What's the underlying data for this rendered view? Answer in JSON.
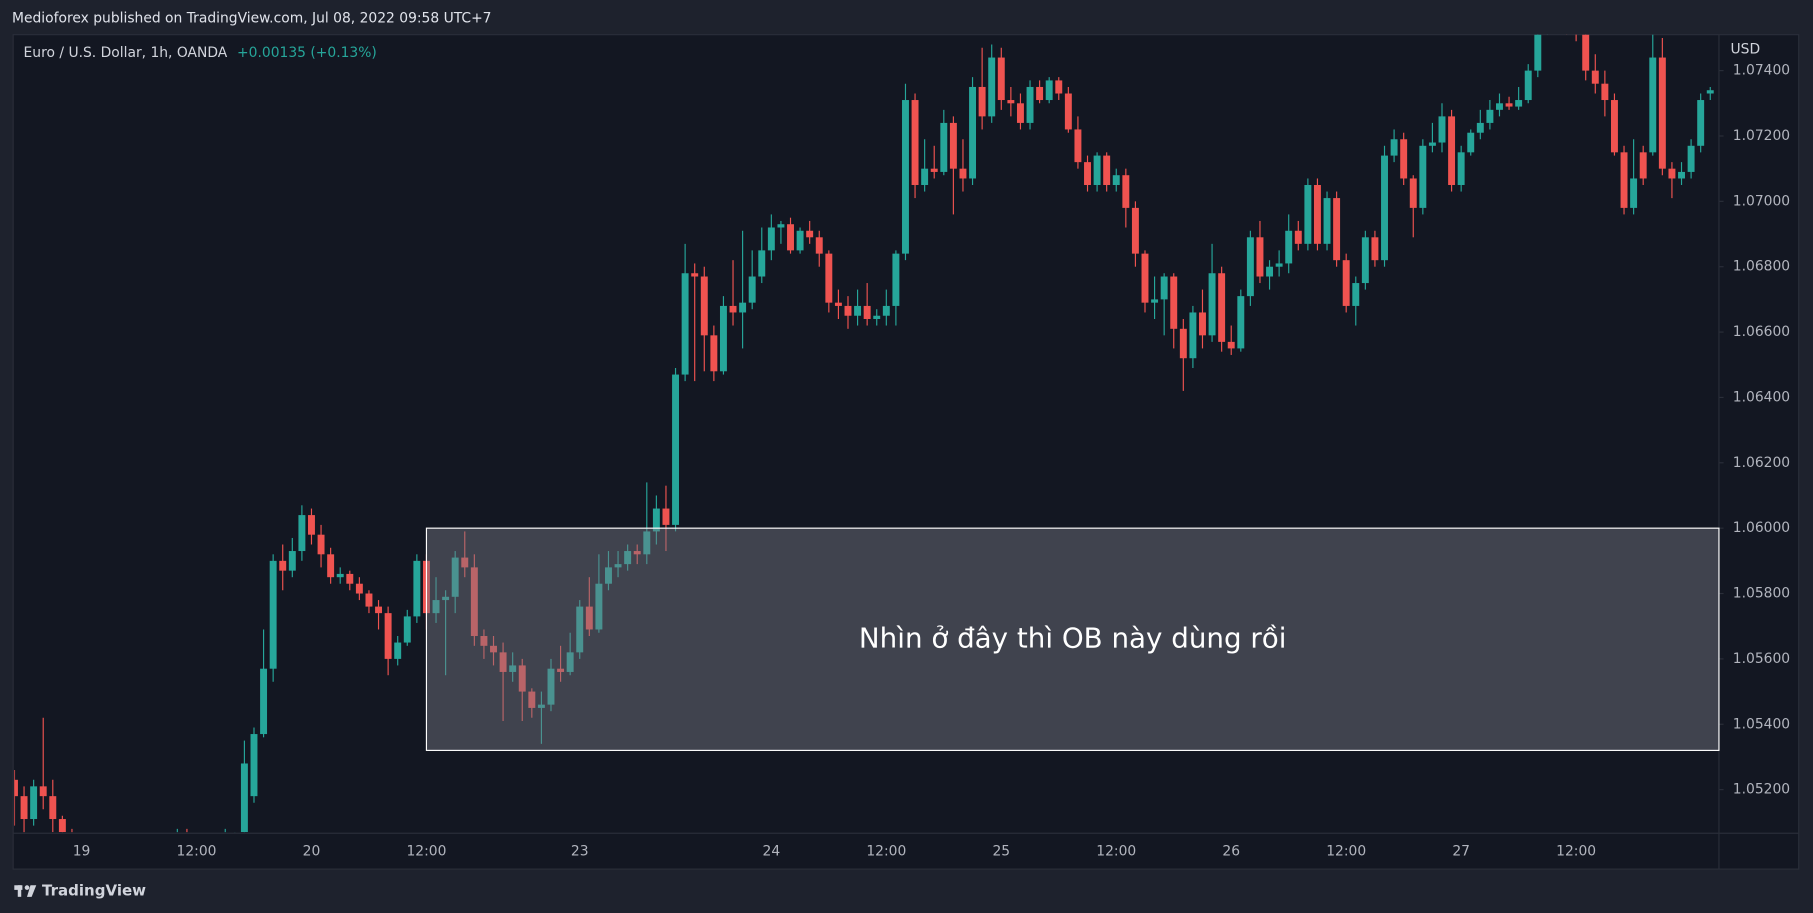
{
  "header": "Medioforex published on TradingView.com, Jul 08, 2022 09:58 UTC+7",
  "footer": "TradingView",
  "chart_data": {
    "type": "candlestick",
    "title": "Euro / U.S. Dollar, 1h, OANDA",
    "change": "+0.00135 (+0.13%)",
    "y_axis_label": "USD",
    "up_color": "#26a69a",
    "down_color": "#ef5350",
    "grid": false,
    "ylim": [
      1.0507,
      1.0751
    ],
    "yticks": [
      {
        "value": 1.052,
        "label": "1.05200"
      },
      {
        "value": 1.054,
        "label": "1.05400"
      },
      {
        "value": 1.056,
        "label": "1.05600"
      },
      {
        "value": 1.058,
        "label": "1.05800"
      },
      {
        "value": 1.06,
        "label": "1.06000"
      },
      {
        "value": 1.062,
        "label": "1.06200"
      },
      {
        "value": 1.064,
        "label": "1.06400"
      },
      {
        "value": 1.066,
        "label": "1.06600"
      },
      {
        "value": 1.068,
        "label": "1.06800"
      },
      {
        "value": 1.07,
        "label": "1.07000"
      },
      {
        "value": 1.072,
        "label": "1.07200"
      },
      {
        "value": 1.074,
        "label": "1.07400"
      }
    ],
    "categories": [
      null,
      null,
      null,
      null,
      null,
      null,
      null,
      "19",
      null,
      null,
      null,
      null,
      null,
      null,
      null,
      null,
      null,
      null,
      null,
      "12:00",
      null,
      null,
      null,
      null,
      null,
      null,
      null,
      null,
      null,
      null,
      null,
      "20",
      null,
      null,
      null,
      null,
      null,
      null,
      null,
      null,
      null,
      null,
      null,
      "12:00",
      null,
      null,
      null,
      null,
      null,
      null,
      null,
      null,
      null,
      null,
      null,
      null,
      null,
      null,
      null,
      "23",
      null,
      null,
      null,
      null,
      null,
      null,
      null,
      null,
      null,
      null,
      null,
      null,
      null,
      null,
      null,
      null,
      null,
      null,
      null,
      "24",
      null,
      null,
      null,
      null,
      null,
      null,
      null,
      null,
      null,
      null,
      null,
      "12:00",
      null,
      null,
      null,
      null,
      null,
      null,
      null,
      null,
      null,
      null,
      null,
      "25",
      null,
      null,
      null,
      null,
      null,
      null,
      null,
      null,
      null,
      null,
      null,
      "12:00",
      null,
      null,
      null,
      null,
      null,
      null,
      null,
      null,
      null,
      null,
      null,
      "26",
      null,
      null,
      null,
      null,
      null,
      null,
      null,
      null,
      null,
      null,
      null,
      "12:00",
      null,
      null,
      null,
      null,
      null,
      null,
      null,
      null,
      null,
      null,
      null,
      "27",
      null,
      null,
      null,
      null,
      null,
      null,
      null,
      null,
      null,
      null,
      null,
      "12:00",
      null,
      null,
      null,
      null,
      null,
      null,
      null,
      null,
      null,
      null,
      null,
      null,
      null,
      null
    ],
    "open": [
      1.0523,
      1.0518,
      1.0511,
      1.0521,
      1.0518,
      1.0511,
      1.0507,
      1.0502,
      1.0499,
      1.0497,
      1.05,
      1.0498,
      1.0495,
      1.0497,
      1.0501,
      1.0499,
      1.0496,
      1.0499,
      1.0503,
      1.0501,
      1.0498,
      1.05,
      1.0502,
      1.0504,
      1.0507,
      1.0518,
      1.0537,
      1.0557,
      1.059,
      1.0587,
      1.0593,
      1.0604,
      1.0598,
      1.0592,
      1.0585,
      1.0586,
      1.0583,
      1.058,
      1.0576,
      1.0574,
      1.056,
      1.0565,
      1.0573,
      1.059,
      1.0574,
      1.0578,
      1.0579,
      1.0591,
      1.0588,
      1.0567,
      1.0564,
      1.0562,
      1.0556,
      1.0558,
      1.055,
      1.0545,
      1.0546,
      1.0557,
      1.0556,
      1.0562,
      1.0576,
      1.0569,
      1.0583,
      1.0588,
      1.0589,
      1.0593,
      1.0592,
      1.0599,
      1.0606,
      1.0601,
      1.0647,
      1.0678,
      1.0677,
      1.0659,
      1.0648,
      1.0668,
      1.0666,
      1.0669,
      1.0677,
      1.0685,
      1.0692,
      1.0693,
      1.0685,
      1.0691,
      1.0689,
      1.0684,
      1.0669,
      1.0668,
      1.0665,
      1.0668,
      1.0664,
      1.0665,
      1.0668,
      1.0684,
      1.0731,
      1.0705,
      1.071,
      1.0709,
      1.0724,
      1.071,
      1.0707,
      1.0735,
      1.0726,
      1.0744,
      1.0731,
      1.073,
      1.0724,
      1.0735,
      1.0731,
      1.0737,
      1.0733,
      1.0722,
      1.0712,
      1.0705,
      1.0714,
      1.0705,
      1.0708,
      1.0698,
      1.0684,
      1.0669,
      1.067,
      1.0677,
      1.0661,
      1.0652,
      1.0666,
      1.0659,
      1.0678,
      1.0657,
      1.0655,
      1.0671,
      1.0689,
      1.0677,
      1.068,
      1.0681,
      1.0691,
      1.0687,
      1.0705,
      1.0687,
      1.0701,
      1.0682,
      1.0668,
      1.0675,
      1.0689,
      1.0682,
      1.0714,
      1.0719,
      1.0707,
      1.0698,
      1.0717,
      1.0718,
      1.0726,
      1.0705,
      1.0715,
      1.0721,
      1.0724,
      1.0728,
      1.073,
      1.0729,
      1.0731,
      1.074,
      1.0752,
      1.0756,
      1.0758,
      1.0754,
      1.0751,
      1.074,
      1.0736,
      1.0731,
      1.0715,
      1.0698,
      1.0715,
      1.0715,
      1.0744,
      1.071,
      1.0707,
      1.0709,
      1.0717,
      1.0733
    ],
    "high": [
      1.0526,
      1.0521,
      1.0523,
      1.0542,
      1.0523,
      1.0512,
      1.0508,
      1.0505,
      1.0503,
      1.0502,
      1.0504,
      1.0501,
      1.05,
      1.0503,
      1.0504,
      1.0502,
      1.0501,
      1.0508,
      1.0508,
      1.0504,
      1.0502,
      1.0505,
      1.0508,
      1.0507,
      1.0535,
      1.0539,
      1.0569,
      1.0592,
      1.0595,
      1.0597,
      1.0607,
      1.0606,
      1.0601,
      1.0594,
      1.0588,
      1.0587,
      1.0585,
      1.0581,
      1.0578,
      1.0576,
      1.0567,
      1.0575,
      1.0592,
      1.0592,
      1.0585,
      1.0581,
      1.0593,
      1.0599,
      1.0592,
      1.0569,
      1.0567,
      1.0565,
      1.0562,
      1.056,
      1.0551,
      1.055,
      1.056,
      1.0564,
      1.0568,
      1.0578,
      1.0585,
      1.0592,
      1.0593,
      1.0593,
      1.0595,
      1.0595,
      1.0614,
      1.061,
      1.0613,
      1.0649,
      1.0687,
      1.0681,
      1.068,
      1.0662,
      1.0671,
      1.0682,
      1.0691,
      1.0685,
      1.0692,
      1.0696,
      1.0694,
      1.0695,
      1.0692,
      1.0694,
      1.0691,
      1.0685,
      1.0673,
      1.0671,
      1.0673,
      1.0675,
      1.0667,
      1.0673,
      1.0685,
      1.0736,
      1.0733,
      1.0719,
      1.0717,
      1.0728,
      1.0726,
      1.0719,
      1.0738,
      1.0747,
      1.0748,
      1.0747,
      1.0735,
      1.0733,
      1.0737,
      1.0737,
      1.0738,
      1.0738,
      1.0735,
      1.0726,
      1.0714,
      1.0715,
      1.0715,
      1.071,
      1.071,
      1.07,
      1.0685,
      1.0677,
      1.0678,
      1.0678,
      1.0664,
      1.0668,
      1.0673,
      1.0687,
      1.068,
      1.0662,
      1.0673,
      1.0691,
      1.0694,
      1.0682,
      1.0685,
      1.0696,
      1.0694,
      1.0707,
      1.0707,
      1.0703,
      1.0703,
      1.0684,
      1.0677,
      1.0691,
      1.0691,
      1.0717,
      1.0722,
      1.0721,
      1.0708,
      1.0719,
      1.0724,
      1.073,
      1.0728,
      1.0717,
      1.0722,
      1.0728,
      1.0731,
      1.0733,
      1.0732,
      1.0735,
      1.0742,
      1.0754,
      1.0758,
      1.076,
      1.076,
      1.0758,
      1.0752,
      1.0745,
      1.074,
      1.0733,
      1.0717,
      1.0719,
      1.0717,
      1.0751,
      1.075,
      1.0712,
      1.0712,
      1.0719,
      1.0733,
      1.0735
    ],
    "low": [
      1.0509,
      1.0505,
      1.0509,
      1.0514,
      1.0507,
      1.0503,
      1.0498,
      1.0496,
      1.0494,
      1.0493,
      1.0496,
      1.0492,
      1.049,
      1.0494,
      1.0497,
      1.0494,
      1.0492,
      1.0496,
      1.0499,
      1.0496,
      1.0494,
      1.0497,
      1.0499,
      1.05,
      1.0505,
      1.0516,
      1.0536,
      1.0553,
      1.0581,
      1.0585,
      1.059,
      1.0595,
      1.0588,
      1.0583,
      1.0583,
      1.0581,
      1.0578,
      1.0574,
      1.0569,
      1.0555,
      1.0558,
      1.0564,
      1.0571,
      1.0569,
      1.0571,
      1.0555,
      1.0574,
      1.0585,
      1.0564,
      1.056,
      1.0558,
      1.0541,
      1.0553,
      1.0541,
      1.0542,
      1.0534,
      1.0544,
      1.0553,
      1.0555,
      1.056,
      1.0567,
      1.0568,
      1.0581,
      1.0585,
      1.0587,
      1.0589,
      1.0589,
      1.0595,
      1.0593,
      1.0599,
      1.0645,
      1.0645,
      1.0648,
      1.0645,
      1.0647,
      1.0662,
      1.0655,
      1.0667,
      1.0675,
      1.0682,
      1.0687,
      1.0684,
      1.0684,
      1.0687,
      1.068,
      1.0666,
      1.0664,
      1.0661,
      1.0662,
      1.0662,
      1.0662,
      1.0662,
      1.0662,
      1.0682,
      1.0701,
      1.0703,
      1.0707,
      1.0708,
      1.0696,
      1.0703,
      1.0705,
      1.0722,
      1.0724,
      1.0728,
      1.0726,
      1.0722,
      1.0722,
      1.073,
      1.073,
      1.0731,
      1.0721,
      1.071,
      1.0703,
      1.0703,
      1.0703,
      1.0703,
      1.0692,
      1.068,
      1.0666,
      1.0664,
      1.0659,
      1.0655,
      1.0642,
      1.0649,
      1.0655,
      1.0657,
      1.0654,
      1.0653,
      1.0654,
      1.0668,
      1.0675,
      1.0673,
      1.0677,
      1.0678,
      1.0685,
      1.0685,
      1.0685,
      1.0685,
      1.068,
      1.0666,
      1.0662,
      1.0673,
      1.068,
      1.068,
      1.0712,
      1.0705,
      1.0689,
      1.0696,
      1.0715,
      1.0715,
      1.0703,
      1.0703,
      1.0714,
      1.0719,
      1.0722,
      1.0726,
      1.0728,
      1.0728,
      1.073,
      1.0738,
      1.0751,
      1.0752,
      1.0751,
      1.0749,
      1.0737,
      1.0733,
      1.0726,
      1.0714,
      1.0696,
      1.0696,
      1.0705,
      1.0714,
      1.0708,
      1.0701,
      1.0705,
      1.0707,
      1.0715,
      1.0731
    ],
    "close": [
      1.0518,
      1.0511,
      1.0521,
      1.0518,
      1.0511,
      1.0507,
      1.0502,
      1.0499,
      1.0497,
      1.05,
      1.0498,
      1.0495,
      1.0497,
      1.0501,
      1.0499,
      1.0496,
      1.0499,
      1.0503,
      1.0501,
      1.0498,
      1.05,
      1.0502,
      1.0504,
      1.0505,
      1.0528,
      1.0537,
      1.0557,
      1.059,
      1.0587,
      1.0593,
      1.0604,
      1.0598,
      1.0592,
      1.0585,
      1.0586,
      1.0583,
      1.058,
      1.0576,
      1.0574,
      1.056,
      1.0565,
      1.0573,
      1.059,
      1.0574,
      1.0578,
      1.0579,
      1.0591,
      1.0588,
      1.0567,
      1.0564,
      1.0562,
      1.0556,
      1.0558,
      1.055,
      1.0545,
      1.0546,
      1.0557,
      1.0556,
      1.0562,
      1.0576,
      1.0569,
      1.0583,
      1.0588,
      1.0589,
      1.0593,
      1.0592,
      1.0599,
      1.0606,
      1.0601,
      1.0647,
      1.0678,
      1.0677,
      1.0659,
      1.0648,
      1.0668,
      1.0666,
      1.0669,
      1.0677,
      1.0685,
      1.0692,
      1.0693,
      1.0685,
      1.0691,
      1.0689,
      1.0684,
      1.0669,
      1.0668,
      1.0665,
      1.0668,
      1.0664,
      1.0665,
      1.0668,
      1.0684,
      1.0731,
      1.0705,
      1.071,
      1.0709,
      1.0724,
      1.071,
      1.0707,
      1.0735,
      1.0726,
      1.0744,
      1.0731,
      1.073,
      1.0724,
      1.0735,
      1.0731,
      1.0737,
      1.0733,
      1.0722,
      1.0712,
      1.0705,
      1.0714,
      1.0705,
      1.0708,
      1.0698,
      1.0684,
      1.0669,
      1.067,
      1.0677,
      1.0661,
      1.0652,
      1.0666,
      1.0659,
      1.0678,
      1.0657,
      1.0655,
      1.0671,
      1.0689,
      1.0677,
      1.068,
      1.0681,
      1.0691,
      1.0687,
      1.0705,
      1.0687,
      1.0701,
      1.0682,
      1.0668,
      1.0675,
      1.0689,
      1.0682,
      1.0714,
      1.0719,
      1.0707,
      1.0698,
      1.0717,
      1.0718,
      1.0726,
      1.0705,
      1.0715,
      1.0721,
      1.0724,
      1.0728,
      1.073,
      1.0729,
      1.0731,
      1.074,
      1.0751,
      1.0756,
      1.0758,
      1.0754,
      1.0751,
      1.074,
      1.0736,
      1.0731,
      1.0715,
      1.0698,
      1.0707,
      1.0707,
      1.0744,
      1.071,
      1.0707,
      1.0709,
      1.0717,
      1.0731,
      1.0734
    ],
    "zone": {
      "label": "Nhìn ở đây thì OB này dùng rồi",
      "start": 43,
      "ylim": [
        1.0532,
        1.06
      ]
    }
  }
}
